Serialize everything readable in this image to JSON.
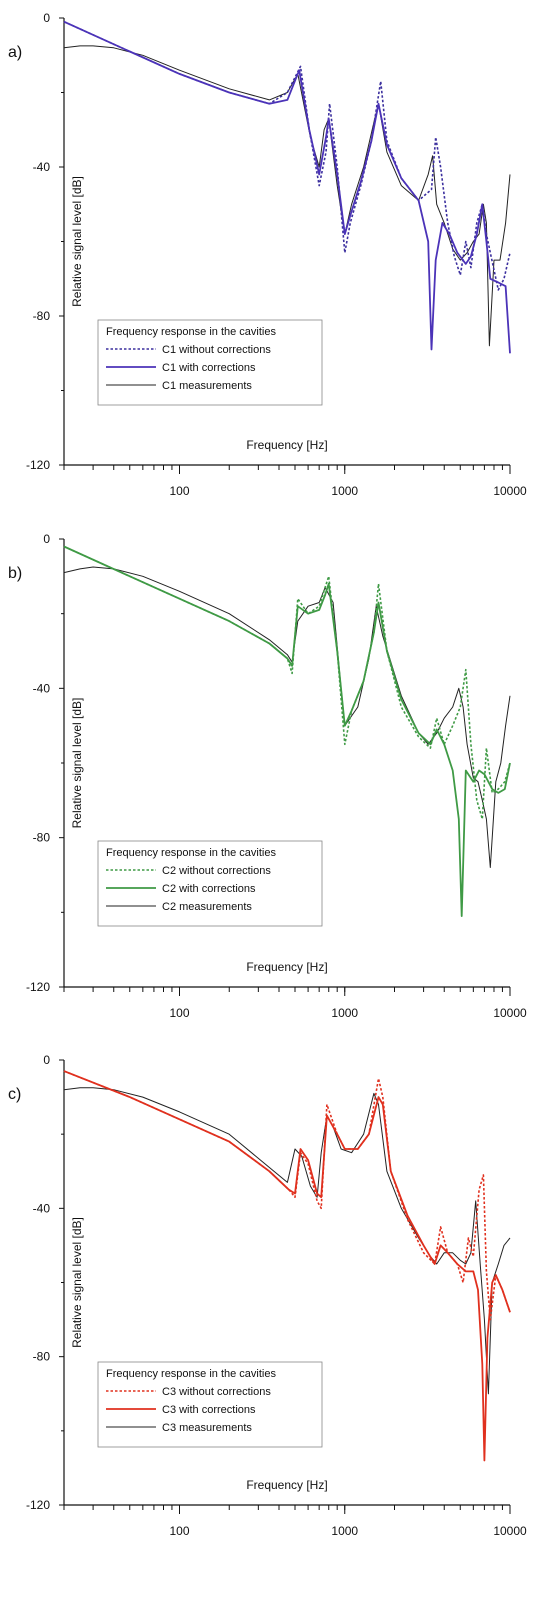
{
  "chart_data": [
    {
      "type": "line",
      "panel": "a)",
      "xlabel": "Frequency [Hz]",
      "ylabel": "Relative signal level [dB]",
      "xscale": "log",
      "xlim": [
        20,
        10000
      ],
      "ylim": [
        -120,
        0
      ],
      "x_tick_labels": [
        "100",
        "1000",
        "10000"
      ],
      "y_tick_labels": [
        "0",
        "-40",
        "-80",
        "-120"
      ],
      "legend": {
        "title": "Frequency response in the cavities",
        "position": "lower-left"
      },
      "series": [
        {
          "name": "C1 without corrections",
          "color": "#3b2f9e",
          "style": "dotted",
          "x": [
            20,
            50,
            100,
            200,
            350,
            450,
            540,
            610,
            700,
            770,
            810,
            900,
            1000,
            1080,
            1250,
            1450,
            1650,
            1800,
            2200,
            2800,
            3350,
            3550,
            3800,
            4200,
            4600,
            5000,
            5400,
            5800,
            6300,
            6800,
            7200,
            7600,
            8500,
            9200,
            10000
          ],
          "y": [
            -1,
            -9,
            -15,
            -20,
            -23,
            -20,
            -13,
            -30,
            -45,
            -36,
            -23,
            -40,
            -63,
            -55,
            -45,
            -33,
            -17,
            -33,
            -43,
            -49,
            -46,
            -32,
            -40,
            -55,
            -64,
            -69,
            -60,
            -67,
            -55,
            -50,
            -58,
            -63,
            -73,
            -70,
            -63
          ]
        },
        {
          "name": "C1 with corrections",
          "color": "#4b33b8",
          "style": "solid",
          "x": [
            20,
            50,
            100,
            200,
            350,
            450,
            530,
            610,
            700,
            770,
            800,
            900,
            1000,
            1080,
            1250,
            1450,
            1600,
            1800,
            2200,
            2800,
            3200,
            3350,
            3550,
            3900,
            4300,
            4800,
            5400,
            5800,
            6300,
            6800,
            7200,
            7600,
            8500,
            9400,
            10000
          ],
          "y": [
            -1,
            -9,
            -15,
            -20,
            -23,
            -22,
            -14,
            -30,
            -42,
            -32,
            -27,
            -42,
            -58,
            -53,
            -44,
            -33,
            -23,
            -34,
            -43,
            -49,
            -60,
            -89,
            -65,
            -55,
            -58,
            -63,
            -66,
            -64,
            -58,
            -50,
            -60,
            -70,
            -71,
            -72,
            -90
          ]
        },
        {
          "name": "C1 measurements",
          "color": "#222222",
          "style": "solid",
          "x": [
            20,
            25,
            30,
            40,
            60,
            100,
            200,
            350,
            450,
            520,
            620,
            700,
            750,
            800,
            900,
            1000,
            1100,
            1300,
            1500,
            1600,
            1800,
            2200,
            2800,
            3200,
            3400,
            3600,
            4000,
            4500,
            5000,
            5500,
            6000,
            6500,
            6900,
            7200,
            7500,
            8000,
            8700,
            9400,
            10000
          ],
          "y": [
            -8,
            -7.5,
            -7.5,
            -8,
            -10,
            -14,
            -19,
            -22,
            -20,
            -15,
            -32,
            -40,
            -30,
            -27,
            -45,
            -58,
            -50,
            -40,
            -28,
            -23,
            -36,
            -45,
            -49,
            -42,
            -37,
            -50,
            -55,
            -62,
            -65,
            -63,
            -60,
            -58,
            -50,
            -55,
            -88,
            -65,
            -65,
            -55,
            -42
          ]
        }
      ]
    },
    {
      "type": "line",
      "panel": "b)",
      "xlabel": "Frequency [Hz]",
      "ylabel": "Relative signal level [dB]",
      "xscale": "log",
      "xlim": [
        20,
        10000
      ],
      "ylim": [
        -120,
        0
      ],
      "x_tick_labels": [
        "100",
        "1000",
        "10000"
      ],
      "y_tick_labels": [
        "0",
        "-40",
        "-80",
        "-120"
      ],
      "legend": {
        "title": "Frequency response in the cavities",
        "position": "lower-left"
      },
      "series": [
        {
          "name": "C2 without corrections",
          "color": "#3f9a45",
          "style": "dotted",
          "x": [
            20,
            50,
            100,
            200,
            350,
            450,
            480,
            520,
            600,
            700,
            760,
            800,
            900,
            1000,
            1100,
            1300,
            1500,
            1600,
            1800,
            2200,
            2800,
            3300,
            3600,
            4000,
            4500,
            5000,
            5400,
            5800,
            6300,
            6800,
            7200,
            7800,
            8500,
            9300,
            10000
          ],
          "y": [
            -2,
            -10,
            -16,
            -22,
            -28,
            -32,
            -36,
            -16,
            -20,
            -18,
            -13,
            -10,
            -30,
            -55,
            -46,
            -38,
            -25,
            -12,
            -30,
            -45,
            -53,
            -56,
            -48,
            -55,
            -50,
            -45,
            -35,
            -55,
            -70,
            -75,
            -56,
            -68,
            -67,
            -65,
            -60
          ]
        },
        {
          "name": "C2 with corrections",
          "color": "#3f9a45",
          "style": "solid",
          "x": [
            20,
            50,
            100,
            200,
            350,
            450,
            480,
            520,
            600,
            700,
            760,
            800,
            900,
            1000,
            1100,
            1300,
            1500,
            1600,
            1800,
            2200,
            2800,
            3300,
            3600,
            4000,
            4500,
            4900,
            5100,
            5400,
            6000,
            6500,
            7000,
            7800,
            8500,
            9300,
            10000
          ],
          "y": [
            -2,
            -10,
            -16,
            -22,
            -28,
            -32,
            -34,
            -18,
            -20,
            -19,
            -15,
            -12,
            -30,
            -50,
            -46,
            -38,
            -25,
            -17,
            -30,
            -43,
            -52,
            -55,
            -51,
            -55,
            -62,
            -75,
            -101,
            -62,
            -65,
            -62,
            -63,
            -67,
            -68,
            -67,
            -60
          ]
        },
        {
          "name": "C2 measurements",
          "color": "#222222",
          "style": "solid",
          "x": [
            20,
            25,
            30,
            40,
            60,
            100,
            200,
            350,
            450,
            480,
            520,
            600,
            700,
            760,
            850,
            950,
            1000,
            1200,
            1400,
            1550,
            1700,
            2200,
            2800,
            3200,
            3600,
            4000,
            4500,
            4900,
            5200,
            5500,
            6000,
            6400,
            6800,
            7200,
            7600,
            8200,
            8800,
            9400,
            10000
          ],
          "y": [
            -9,
            -8,
            -7.5,
            -8,
            -10,
            -14,
            -20,
            -27,
            -31,
            -33,
            -22,
            -18,
            -17,
            -13,
            -17,
            -40,
            -50,
            -45,
            -32,
            -18,
            -26,
            -42,
            -52,
            -55,
            -52,
            -48,
            -45,
            -40,
            -45,
            -55,
            -64,
            -65,
            -70,
            -75,
            -88,
            -65,
            -60,
            -50,
            -42
          ]
        }
      ]
    },
    {
      "type": "line",
      "panel": "c)",
      "xlabel": "Frequency [Hz]",
      "ylabel": "Relative signal level [dB]",
      "xscale": "log",
      "xlim": [
        20,
        10000
      ],
      "ylim": [
        -120,
        0
      ],
      "x_tick_labels": [
        "100",
        "1000",
        "10000"
      ],
      "y_tick_labels": [
        "0",
        "-40",
        "-80",
        "-120"
      ],
      "legend": {
        "title": "Frequency response in the cavities",
        "position": "lower-left"
      },
      "series": [
        {
          "name": "C3 without corrections",
          "color": "#e0301e",
          "style": "dotted",
          "x": [
            20,
            50,
            100,
            200,
            350,
            460,
            500,
            540,
            600,
            680,
            720,
            780,
            900,
            1000,
            1200,
            1400,
            1600,
            1700,
            1900,
            2400,
            3000,
            3500,
            3800,
            4200,
            4800,
            5200,
            5600,
            6000,
            6500,
            6900,
            7200,
            7600,
            8200,
            9000,
            10000
          ],
          "y": [
            -3,
            -10,
            -16,
            -22,
            -30,
            -35,
            -37,
            -25,
            -28,
            -38,
            -40,
            -12,
            -20,
            -24,
            -24,
            -20,
            -5,
            -10,
            -30,
            -43,
            -52,
            -55,
            -45,
            -52,
            -55,
            -60,
            -48,
            -53,
            -35,
            -31,
            -57,
            -70,
            -58,
            -62,
            -68
          ]
        },
        {
          "name": "C3 with corrections",
          "color": "#e0301e",
          "style": "solid",
          "x": [
            20,
            50,
            100,
            200,
            350,
            460,
            500,
            540,
            600,
            680,
            720,
            780,
            900,
            1000,
            1200,
            1400,
            1600,
            1700,
            1900,
            2400,
            3000,
            3500,
            3800,
            4200,
            4800,
            5400,
            6000,
            6400,
            6800,
            7000,
            7300,
            7800,
            8200,
            9000,
            10000
          ],
          "y": [
            -3,
            -10,
            -16,
            -22,
            -30,
            -35,
            -36,
            -24,
            -27,
            -36,
            -37,
            -15,
            -20,
            -24,
            -24,
            -20,
            -10,
            -12,
            -30,
            -42,
            -50,
            -55,
            -50,
            -52,
            -55,
            -57,
            -57,
            -62,
            -82,
            -108,
            -75,
            -60,
            -58,
            -62,
            -68
          ]
        },
        {
          "name": "C3 measurements",
          "color": "#222222",
          "style": "solid",
          "x": [
            20,
            25,
            30,
            40,
            60,
            100,
            200,
            350,
            450,
            500,
            550,
            620,
            680,
            720,
            780,
            850,
            950,
            1100,
            1300,
            1500,
            1600,
            1800,
            2200,
            2800,
            3300,
            3600,
            4000,
            4500,
            5000,
            5400,
            5800,
            6200,
            6600,
            7000,
            7400,
            7800,
            8500,
            9200,
            10000
          ],
          "y": [
            -8,
            -7.5,
            -7.5,
            -8,
            -10,
            -14,
            -20,
            -29,
            -33,
            -24,
            -26,
            -34,
            -37,
            -25,
            -15,
            -18,
            -24,
            -25,
            -20,
            -9,
            -12,
            -30,
            -40,
            -48,
            -53,
            -55,
            -52,
            -52,
            -54,
            -55,
            -52,
            -38,
            -55,
            -70,
            -90,
            -60,
            -55,
            -50,
            -48
          ]
        }
      ]
    }
  ]
}
